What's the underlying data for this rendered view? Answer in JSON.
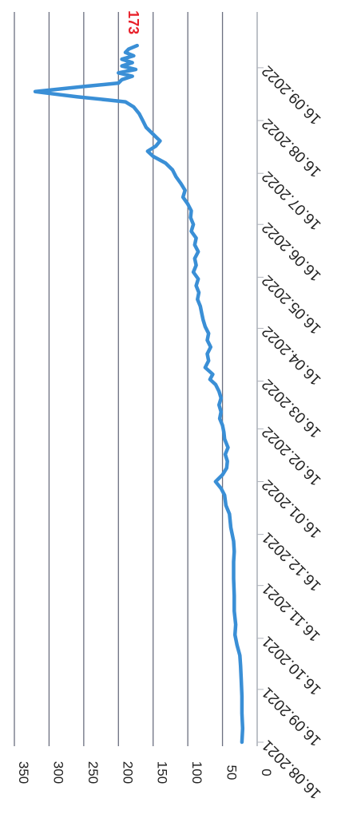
{
  "chart_data": {
    "type": "line",
    "title": "",
    "xlabel": "",
    "ylabel": "",
    "ylim": [
      0,
      350
    ],
    "yticks": [
      0,
      50,
      100,
      150,
      200,
      250,
      300,
      350
    ],
    "xlim": [
      "2021-08-16",
      "2022-09-30"
    ],
    "xtick_labels": [
      "16.08.2021",
      "16.09.2021",
      "16.10.2021",
      "16.11.2021",
      "16.12.2021",
      "16.01.2022",
      "16.02.2022",
      "16.03.2022",
      "16.04.2022",
      "16.05.2022",
      "16.06.2022",
      "16.07.2022",
      "16.08.2022",
      "16.09.2022"
    ],
    "xtick_dates": [
      "2021-08-16",
      "2021-09-16",
      "2021-10-16",
      "2021-11-16",
      "2021-12-16",
      "2022-01-16",
      "2022-02-16",
      "2022-03-16",
      "2022-04-16",
      "2022-05-16",
      "2022-06-16",
      "2022-07-16",
      "2022-08-16",
      "2022-09-16"
    ],
    "orientation": "rotated 90 degrees clockwise",
    "grid": true,
    "legend": "none",
    "series": [
      {
        "color": "#3a8fd6",
        "points": [
          [
            "2021-08-16",
            22
          ],
          [
            "2021-08-24",
            21
          ],
          [
            "2021-09-02",
            22
          ],
          [
            "2021-09-12",
            22
          ],
          [
            "2021-09-22",
            23
          ],
          [
            "2021-09-30",
            24
          ],
          [
            "2021-10-06",
            25
          ],
          [
            "2021-10-12",
            29
          ],
          [
            "2021-10-18",
            32
          ],
          [
            "2021-10-24",
            31
          ],
          [
            "2021-11-01",
            33
          ],
          [
            "2021-11-10",
            33
          ],
          [
            "2021-11-20",
            34
          ],
          [
            "2021-11-30",
            34
          ],
          [
            "2021-12-06",
            33
          ],
          [
            "2021-12-12",
            34
          ],
          [
            "2021-12-20",
            38
          ],
          [
            "2021-12-28",
            40
          ],
          [
            "2022-01-02",
            45
          ],
          [
            "2022-01-08",
            47
          ],
          [
            "2022-01-12",
            52
          ],
          [
            "2022-01-16",
            60
          ],
          [
            "2022-01-20",
            50
          ],
          [
            "2022-01-24",
            44
          ],
          [
            "2022-01-28",
            43
          ],
          [
            "2022-02-01",
            46
          ],
          [
            "2022-02-05",
            42
          ],
          [
            "2022-02-10",
            47
          ],
          [
            "2022-02-14",
            48
          ],
          [
            "2022-02-18",
            50
          ],
          [
            "2022-02-22",
            54
          ],
          [
            "2022-02-26",
            52
          ],
          [
            "2022-03-02",
            55
          ],
          [
            "2022-03-06",
            52
          ],
          [
            "2022-03-10",
            55
          ],
          [
            "2022-03-14",
            60
          ],
          [
            "2022-03-17",
            68
          ],
          [
            "2022-03-20",
            64
          ],
          [
            "2022-03-24",
            75
          ],
          [
            "2022-03-28",
            70
          ],
          [
            "2022-04-01",
            72
          ],
          [
            "2022-04-05",
            67
          ],
          [
            "2022-04-09",
            72
          ],
          [
            "2022-04-13",
            70
          ],
          [
            "2022-04-17",
            75
          ],
          [
            "2022-04-21",
            78
          ],
          [
            "2022-04-25",
            80
          ],
          [
            "2022-04-29",
            82
          ],
          [
            "2022-05-03",
            86
          ],
          [
            "2022-05-07",
            84
          ],
          [
            "2022-05-11",
            88
          ],
          [
            "2022-05-15",
            85
          ],
          [
            "2022-05-19",
            92
          ],
          [
            "2022-05-23",
            88
          ],
          [
            "2022-05-27",
            90
          ],
          [
            "2022-05-31",
            85
          ],
          [
            "2022-06-04",
            90
          ],
          [
            "2022-06-08",
            88
          ],
          [
            "2022-06-12",
            95
          ],
          [
            "2022-06-16",
            92
          ],
          [
            "2022-06-20",
            96
          ],
          [
            "2022-06-24",
            95
          ],
          [
            "2022-06-28",
            100
          ],
          [
            "2022-07-02",
            107
          ],
          [
            "2022-07-06",
            104
          ],
          [
            "2022-07-10",
            110
          ],
          [
            "2022-07-14",
            117
          ],
          [
            "2022-07-18",
            122
          ],
          [
            "2022-07-22",
            132
          ],
          [
            "2022-07-26",
            150
          ],
          [
            "2022-07-29",
            158
          ],
          [
            "2022-08-01",
            146
          ],
          [
            "2022-08-04",
            140
          ],
          [
            "2022-08-08",
            150
          ],
          [
            "2022-08-12",
            160
          ],
          [
            "2022-08-16",
            165
          ],
          [
            "2022-08-20",
            170
          ],
          [
            "2022-08-24",
            178
          ],
          [
            "2022-08-27",
            190
          ],
          [
            "2022-08-30",
            260
          ],
          [
            "2022-09-02",
            320
          ],
          [
            "2022-09-05",
            250
          ],
          [
            "2022-09-07",
            200
          ],
          [
            "2022-09-09",
            195
          ],
          [
            "2022-09-11",
            180
          ],
          [
            "2022-09-13",
            200
          ],
          [
            "2022-09-15",
            175
          ],
          [
            "2022-09-17",
            195
          ],
          [
            "2022-09-19",
            180
          ],
          [
            "2022-09-21",
            195
          ],
          [
            "2022-09-23",
            178
          ],
          [
            "2022-09-25",
            190
          ],
          [
            "2022-09-27",
            185
          ],
          [
            "2022-09-29",
            173
          ]
        ]
      }
    ],
    "annotations": [
      {
        "text": "173",
        "date": "2022-09-29",
        "value": 173,
        "color": "#e8202a"
      }
    ]
  }
}
